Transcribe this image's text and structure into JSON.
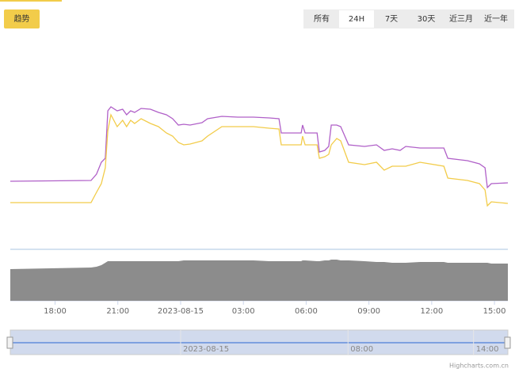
{
  "buttons": {
    "trend": "趋势"
  },
  "range_selector": {
    "buttons": [
      "所有",
      "24H",
      "7天",
      "30天",
      "近三月",
      "近一年"
    ],
    "selected": 1
  },
  "credits": "Highcharts.com.cn",
  "chart_data": {
    "type": "line",
    "x": [
      -8.14,
      -4.28,
      -4.02,
      -3.79,
      -3.6,
      -3.48,
      -3.33,
      -3.03,
      -2.77,
      -2.58,
      -2.39,
      -2.2,
      -1.89,
      -1.44,
      -1.06,
      -0.68,
      -0.38,
      -0.11,
      0.15,
      0.45,
      1.02,
      1.29,
      1.97,
      2.73,
      3.48,
      4.24,
      4.7,
      4.81,
      5.76,
      5.83,
      5.95,
      6.52,
      6.63,
      6.89,
      7.08,
      7.2,
      7.46,
      7.65,
      8.03,
      8.79,
      9.36,
      9.73,
      10.11,
      10.49,
      10.76,
      11.44,
      12.58,
      12.77,
      13.71,
      14.28,
      14.55,
      14.66,
      14.85,
      15.64
    ],
    "series": [
      {
        "color": "#b060c8",
        "values": [
          81,
          82,
          90,
          105,
          110,
          170,
          175,
          170,
          172,
          165,
          170,
          168,
          173,
          172,
          168,
          165,
          160,
          152,
          153,
          152,
          155,
          160,
          163,
          162,
          162,
          161,
          160,
          142,
          142,
          152,
          142,
          142,
          118,
          120,
          125,
          152,
          152,
          150,
          127,
          125,
          127,
          120,
          122,
          120,
          125,
          123,
          123,
          110,
          107,
          103,
          98,
          73,
          78,
          79
        ]
      },
      {
        "color": "#f2cc4a",
        "values": [
          54,
          54,
          67,
          78,
          98,
          145,
          165,
          150,
          158,
          150,
          158,
          154,
          160,
          154,
          150,
          142,
          138,
          130,
          127,
          128,
          132,
          138,
          150,
          150,
          150,
          148,
          147,
          127,
          127,
          138,
          127,
          127,
          110,
          112,
          115,
          127,
          135,
          132,
          105,
          102,
          105,
          95,
          100,
          100,
          100,
          105,
          100,
          85,
          82,
          78,
          70,
          50,
          55,
          53
        ]
      }
    ],
    "volume": {
      "color": "#8c8c8c",
      "values": [
        40,
        42,
        43,
        45,
        48,
        50,
        50,
        50,
        50,
        50,
        50,
        50,
        50,
        50,
        50,
        50,
        50,
        50,
        51,
        51,
        51,
        51,
        51,
        51,
        51,
        50,
        50,
        50,
        50,
        51,
        51,
        50,
        50,
        51,
        51,
        52,
        52,
        51,
        51,
        50,
        49,
        49,
        48,
        48,
        48,
        49,
        49,
        48,
        48,
        48,
        48,
        48,
        47,
        47
      ]
    },
    "xlim": [
      -8.14,
      15.64
    ],
    "ylim": [
      0,
      270
    ],
    "y2lim": [
      0,
      62
    ],
    "xticks": [
      {
        "value": -6,
        "label": "18:00"
      },
      {
        "value": -3,
        "label": "21:00"
      },
      {
        "value": 0,
        "label": "2023-08-15"
      },
      {
        "value": 3,
        "label": "03:00"
      },
      {
        "value": 6,
        "label": "06:00"
      },
      {
        "value": 9,
        "label": "09:00"
      },
      {
        "value": 12,
        "label": "12:00"
      },
      {
        "value": 15,
        "label": "15:00"
      }
    ],
    "navigator_xticks": [
      {
        "value": 0,
        "label": "2023-08-15"
      },
      {
        "value": 8,
        "label": "08:00"
      },
      {
        "value": 14,
        "label": "14:00"
      }
    ]
  }
}
